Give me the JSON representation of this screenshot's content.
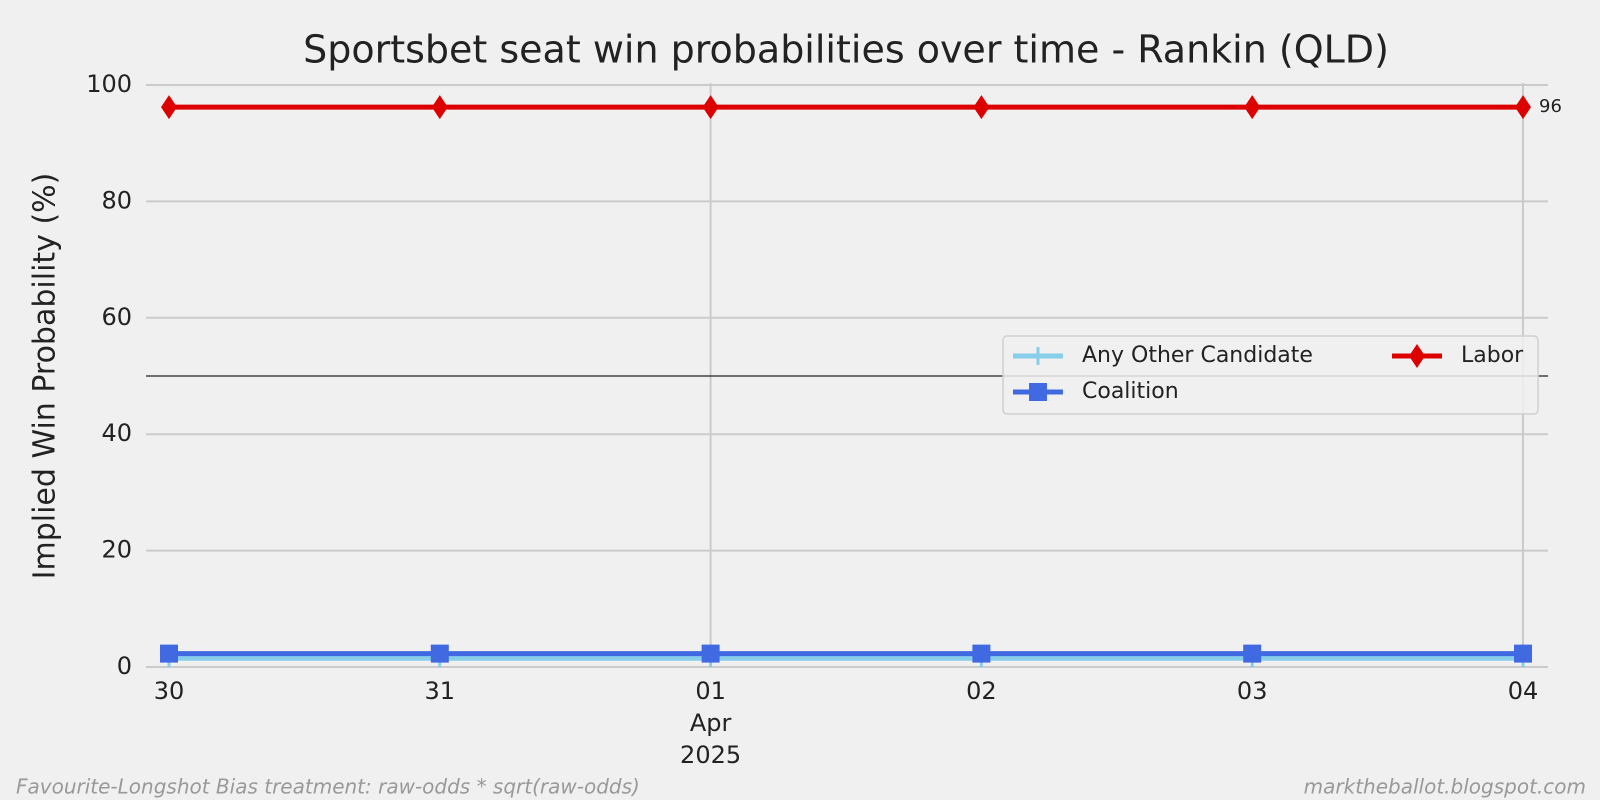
{
  "chart_data": {
    "type": "line",
    "title": "Sportsbet seat win probabilities over time - Rankin (QLD)",
    "ylabel": "Implied Win Probability (%)",
    "x": [
      "2025-03-30",
      "2025-03-31",
      "2025-04-01",
      "2025-04-02",
      "2025-04-03",
      "2025-04-04"
    ],
    "xlim": [
      "2025-03-30",
      "2025-04-04"
    ],
    "xticks": [
      {
        "value": "2025-03-30",
        "label": "30"
      },
      {
        "value": "2025-03-31",
        "label": "31"
      },
      {
        "value": "2025-04-01",
        "label": "01",
        "sublabels": [
          "Apr",
          "2025"
        ]
      },
      {
        "value": "2025-04-02",
        "label": "02"
      },
      {
        "value": "2025-04-03",
        "label": "03"
      },
      {
        "value": "2025-04-04",
        "label": "04"
      }
    ],
    "xgrid": [
      "2025-04-01",
      "2025-04-04"
    ],
    "ylim": [
      0,
      100
    ],
    "yticks": [
      0,
      20,
      40,
      60,
      80,
      100
    ],
    "grid": true,
    "hline": 50,
    "legend": "center right",
    "legend_columns": 2,
    "series": [
      {
        "name": "Any Other Candidate",
        "color": "#87ceeb",
        "marker": "plus",
        "values": [
          1.5,
          1.5,
          1.5,
          1.5,
          1.5,
          1.5
        ]
      },
      {
        "name": "Coalition",
        "color": "#4169e1",
        "marker": "square",
        "values": [
          2.3,
          2.3,
          2.3,
          2.3,
          2.3,
          2.3
        ]
      },
      {
        "name": "Labor",
        "color": "#dd0000",
        "marker": "diamond",
        "values": [
          96.2,
          96.2,
          96.2,
          96.2,
          96.2,
          96.2
        ],
        "end_label": {
          "index": 5,
          "label": "96"
        }
      }
    ],
    "footer_left": "Favourite-Longshot Bias treatment: raw-odds * sqrt(raw-odds)",
    "footer_right": "marktheballot.blogspot.com"
  }
}
